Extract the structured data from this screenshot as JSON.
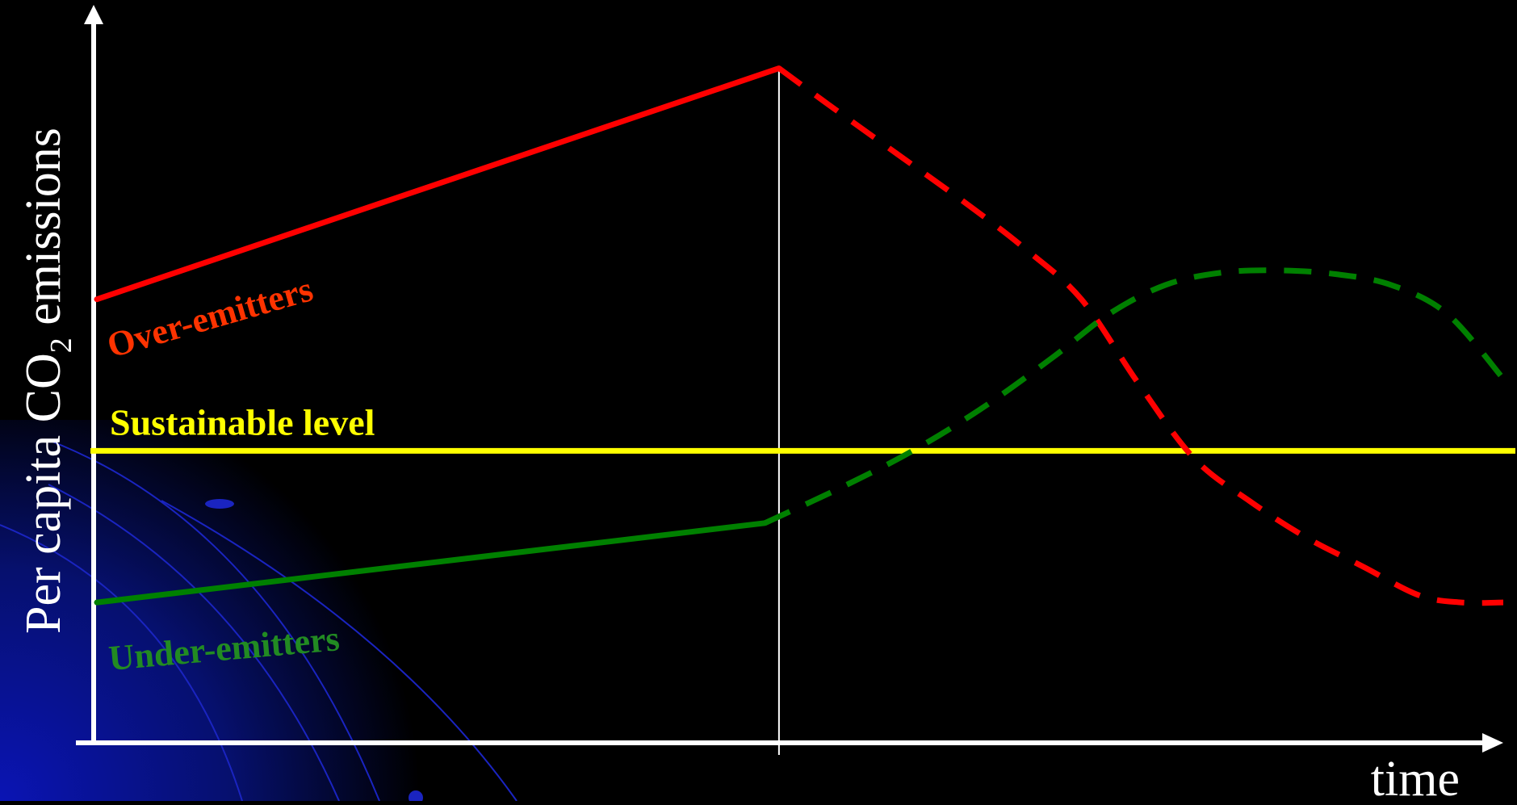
{
  "chart_data": {
    "type": "line",
    "title": "",
    "xlabel": "time",
    "ylabel_parts": {
      "prefix": "Per capita CO",
      "subscript": "2",
      "suffix": " emissions"
    },
    "xlim": [
      0,
      100
    ],
    "ylim": [
      0,
      100
    ],
    "grid": false,
    "legend": "none",
    "annotations": {
      "divider_x": 48.5,
      "divider_label": ""
    },
    "reference_line": {
      "name": "Sustainable level",
      "y": 40,
      "color": "#ffff00"
    },
    "series": [
      {
        "name": "Over-emitters",
        "color": "#ff0000",
        "label_color": "#ff3300",
        "observed": [
          [
            0,
            61
          ],
          [
            48.5,
            93
          ]
        ],
        "projected": [
          [
            48.5,
            93
          ],
          [
            52,
            88
          ],
          [
            57,
            81
          ],
          [
            62,
            74
          ],
          [
            66,
            68
          ],
          [
            70,
            61
          ],
          [
            74,
            49.5
          ],
          [
            78,
            39
          ],
          [
            82,
            33
          ],
          [
            86,
            28
          ],
          [
            90,
            24
          ],
          [
            94,
            20
          ],
          [
            97,
            19
          ],
          [
            100,
            19
          ]
        ]
      },
      {
        "name": "Under-emitters",
        "color": "#008000",
        "label_color": "#228b22",
        "observed": [
          [
            0,
            19
          ],
          [
            47.5,
            30
          ]
        ],
        "projected": [
          [
            47.5,
            30
          ],
          [
            53,
            35
          ],
          [
            58,
            40
          ],
          [
            63,
            46
          ],
          [
            68,
            53
          ],
          [
            72,
            59
          ],
          [
            76,
            63
          ],
          [
            80,
            64.7
          ],
          [
            84,
            65
          ],
          [
            88,
            64.5
          ],
          [
            92,
            63
          ],
          [
            96,
            59
          ],
          [
            100,
            50
          ]
        ]
      }
    ]
  }
}
